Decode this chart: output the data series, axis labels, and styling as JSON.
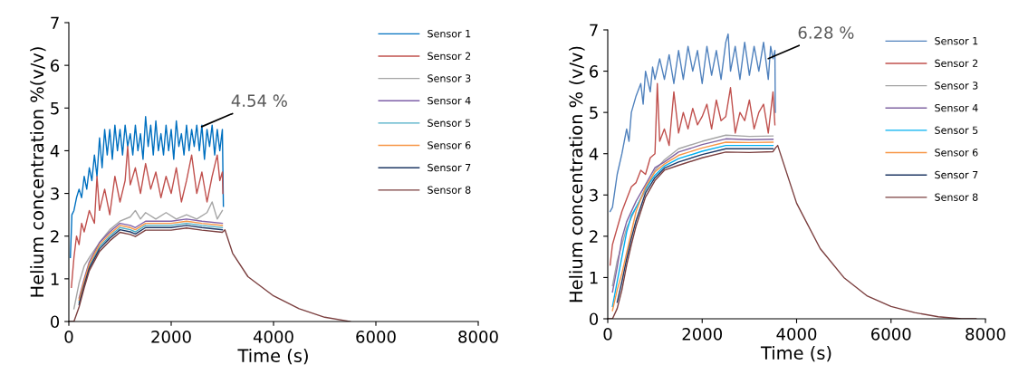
{
  "chart_data": [
    {
      "type": "line",
      "xlabel": "Time (s)",
      "ylabel": "Helium concentration %(v/v)",
      "xlim": [
        0,
        8000
      ],
      "ylim": [
        0,
        7
      ],
      "xticks": [
        0,
        2000,
        4000,
        6000,
        8000
      ],
      "yticks": [
        0,
        1,
        2,
        3,
        4,
        5,
        6,
        7
      ],
      "grid": false,
      "legend": "top right",
      "annotations": [
        {
          "text": "4.54 %",
          "x": 2550,
          "y": 4.54
        }
      ],
      "series": [
        {
          "name": "Sensor 1",
          "color": "#0070c0",
          "x": [
            30,
            60,
            100,
            150,
            200,
            250,
            300,
            350,
            400,
            450,
            500,
            550,
            600,
            650,
            700,
            750,
            800,
            850,
            900,
            950,
            1000,
            1050,
            1100,
            1150,
            1200,
            1250,
            1300,
            1350,
            1400,
            1450,
            1500,
            1550,
            1600,
            1650,
            1700,
            1750,
            1800,
            1850,
            1900,
            1950,
            2000,
            2050,
            2100,
            2150,
            2200,
            2250,
            2300,
            2350,
            2400,
            2450,
            2500,
            2550,
            2600,
            2650,
            2700,
            2750,
            2800,
            2850,
            2900,
            2950,
            3000,
            3020
          ],
          "values": [
            1.5,
            2.5,
            2.6,
            2.9,
            3.1,
            2.9,
            3.4,
            3.1,
            3.6,
            3.3,
            3.9,
            3.4,
            4.3,
            3.6,
            4.5,
            3.9,
            4.5,
            3.8,
            4.6,
            4.0,
            4.5,
            3.9,
            4.6,
            4.1,
            4.4,
            3.9,
            4.6,
            4.0,
            4.4,
            3.8,
            4.8,
            4.1,
            4.6,
            3.9,
            4.7,
            4.0,
            4.4,
            3.9,
            4.6,
            4.0,
            4.5,
            3.8,
            4.7,
            4.1,
            4.4,
            3.9,
            4.6,
            4.0,
            4.5,
            4.1,
            4.6,
            4.0,
            4.6,
            3.8,
            4.5,
            4.1,
            4.6,
            3.9,
            4.5,
            4.0,
            4.5,
            2.7
          ]
        },
        {
          "name": "Sensor 2",
          "color": "#c0504d",
          "x": [
            50,
            100,
            150,
            200,
            250,
            300,
            400,
            500,
            550,
            600,
            700,
            800,
            900,
            1000,
            1100,
            1150,
            1200,
            1300,
            1400,
            1500,
            1600,
            1700,
            1800,
            1900,
            2000,
            2100,
            2200,
            2300,
            2400,
            2500,
            2600,
            2700,
            2800,
            2900,
            2950,
            3000,
            3010
          ],
          "values": [
            0.8,
            1.5,
            2.0,
            1.8,
            2.3,
            2.1,
            2.6,
            2.3,
            3.4,
            2.6,
            3.1,
            2.5,
            3.4,
            2.8,
            3.3,
            4.1,
            3.2,
            3.6,
            3.0,
            3.7,
            3.1,
            3.5,
            2.9,
            3.4,
            3.0,
            3.6,
            2.8,
            3.3,
            3.9,
            3.0,
            3.5,
            2.8,
            3.4,
            3.9,
            3.3,
            3.5,
            3.0
          ]
        },
        {
          "name": "Sensor 3",
          "color": "#a5a5a5",
          "x": [
            100,
            200,
            300,
            400,
            600,
            800,
            1000,
            1200,
            1300,
            1400,
            1500,
            1700,
            1900,
            2100,
            2300,
            2500,
            2700,
            2800,
            2900,
            3000
          ],
          "values": [
            0.3,
            0.9,
            1.3,
            1.5,
            1.85,
            2.15,
            2.35,
            2.45,
            2.6,
            2.4,
            2.55,
            2.4,
            2.55,
            2.4,
            2.5,
            2.4,
            2.55,
            2.8,
            2.4,
            2.6
          ]
        },
        {
          "name": "Sensor 4",
          "color": "#7f5fa8",
          "x": [
            200,
            300,
            400,
            600,
            800,
            1000,
            1200,
            1300,
            1500,
            2000,
            2300,
            2600,
            3000
          ],
          "values": [
            0.55,
            1.0,
            1.4,
            1.85,
            2.1,
            2.3,
            2.25,
            2.2,
            2.35,
            2.35,
            2.4,
            2.35,
            2.3
          ]
        },
        {
          "name": "Sensor 5",
          "color": "#4bacc6",
          "x": [
            200,
            300,
            400,
            600,
            800,
            1000,
            1200,
            1300,
            1500,
            2000,
            2300,
            2600,
            3000
          ],
          "values": [
            0.45,
            0.9,
            1.3,
            1.75,
            2.0,
            2.2,
            2.15,
            2.1,
            2.25,
            2.25,
            2.3,
            2.25,
            2.2
          ]
        },
        {
          "name": "Sensor 6",
          "color": "#f79646",
          "x": [
            200,
            300,
            400,
            600,
            800,
            1000,
            1200,
            1300,
            1500,
            2000,
            2300,
            2600,
            3000
          ],
          "values": [
            0.5,
            0.95,
            1.35,
            1.8,
            2.05,
            2.25,
            2.2,
            2.15,
            2.3,
            2.3,
            2.35,
            2.3,
            2.25
          ]
        },
        {
          "name": "Sensor 7",
          "color": "#1f3864",
          "x": [
            200,
            300,
            400,
            600,
            800,
            1000,
            1200,
            1300,
            1500,
            2000,
            2300,
            2600,
            3000
          ],
          "values": [
            0.4,
            0.85,
            1.25,
            1.7,
            1.95,
            2.15,
            2.1,
            2.05,
            2.2,
            2.2,
            2.25,
            2.2,
            2.15
          ]
        },
        {
          "name": "Sensor 8",
          "color": "#7b3f3f",
          "x": [
            0,
            100,
            200,
            300,
            400,
            600,
            800,
            1000,
            1200,
            1300,
            1500,
            2000,
            2300,
            2600,
            3000,
            3050,
            3200,
            3500,
            4000,
            4500,
            5000,
            5500
          ],
          "values": [
            0,
            0,
            0.34,
            0.79,
            1.19,
            1.64,
            1.89,
            2.09,
            2.04,
            1.99,
            2.14,
            2.14,
            2.19,
            2.14,
            2.09,
            2.15,
            1.6,
            1.05,
            0.6,
            0.3,
            0.1,
            0
          ]
        }
      ]
    },
    {
      "type": "line",
      "xlabel": "Time (s)",
      "ylabel": "Helium concentration % (v/v)",
      "xlim": [
        0,
        8000
      ],
      "ylim": [
        0,
        7
      ],
      "xticks": [
        0,
        2000,
        4000,
        6000,
        8000
      ],
      "yticks": [
        0,
        1,
        2,
        3,
        4,
        5,
        6,
        7
      ],
      "grid": false,
      "legend": "top right",
      "annotations": [
        {
          "text": "6.28 %",
          "x": 3350,
          "y": 6.28
        }
      ],
      "series": [
        {
          "name": "Sensor 1",
          "color": "#4f81bd",
          "x": [
            50,
            100,
            200,
            300,
            400,
            450,
            500,
            600,
            700,
            750,
            800,
            900,
            950,
            1000,
            1100,
            1200,
            1300,
            1400,
            1500,
            1600,
            1700,
            1800,
            1900,
            2000,
            2100,
            2200,
            2300,
            2400,
            2500,
            2550,
            2600,
            2700,
            2800,
            2900,
            3000,
            3100,
            3200,
            3300,
            3400,
            3450,
            3500,
            3540,
            3550
          ],
          "values": [
            2.6,
            2.7,
            3.5,
            4.0,
            4.6,
            4.3,
            5.0,
            5.4,
            5.7,
            5.2,
            6.0,
            5.5,
            6.1,
            5.8,
            6.3,
            5.8,
            6.4,
            5.7,
            6.5,
            5.8,
            6.6,
            6.0,
            6.5,
            5.7,
            6.6,
            5.9,
            6.5,
            5.8,
            6.7,
            6.9,
            6.0,
            6.6,
            5.8,
            6.7,
            5.9,
            6.6,
            6.0,
            6.7,
            5.8,
            6.6,
            6.3,
            6.5,
            5.0
          ]
        },
        {
          "name": "Sensor 2",
          "color": "#c0504d",
          "x": [
            50,
            100,
            200,
            300,
            400,
            500,
            600,
            700,
            800,
            900,
            1000,
            1050,
            1100,
            1200,
            1300,
            1400,
            1500,
            1600,
            1700,
            1800,
            1900,
            2000,
            2100,
            2200,
            2300,
            2400,
            2500,
            2600,
            2700,
            2800,
            2900,
            3000,
            3100,
            3200,
            3300,
            3400,
            3500,
            3540
          ],
          "values": [
            1.3,
            1.8,
            2.2,
            2.6,
            2.9,
            3.2,
            3.3,
            3.6,
            3.5,
            3.9,
            4.0,
            5.7,
            4.3,
            4.6,
            4.2,
            5.5,
            4.5,
            5.0,
            4.6,
            5.1,
            4.7,
            4.9,
            5.2,
            4.6,
            5.3,
            4.8,
            4.9,
            5.6,
            4.5,
            5.0,
            4.8,
            5.3,
            4.6,
            5.0,
            5.2,
            4.5,
            5.5,
            4.7
          ]
        },
        {
          "name": "Sensor 3",
          "color": "#a5a5a5",
          "x": [
            100,
            200,
            300,
            400,
            600,
            800,
            1000,
            1200,
            1500,
            2000,
            2500,
            3000,
            3500
          ],
          "values": [
            0.8,
            1.4,
            1.8,
            2.2,
            2.7,
            3.1,
            3.6,
            3.85,
            4.12,
            4.3,
            4.45,
            4.42,
            4.43
          ]
        },
        {
          "name": "Sensor 4",
          "color": "#8064a2",
          "x": [
            100,
            200,
            300,
            400,
            600,
            800,
            1000,
            1200,
            1500,
            2000,
            2500,
            3000,
            3500
          ],
          "values": [
            0.65,
            1.25,
            1.95,
            2.35,
            2.85,
            3.25,
            3.66,
            3.8,
            4.04,
            4.22,
            4.36,
            4.34,
            4.35
          ]
        },
        {
          "name": "Sensor 5",
          "color": "#00b0f0",
          "x": [
            100,
            200,
            300,
            400,
            500,
            600,
            800,
            1000,
            1200,
            1500,
            2000,
            2500,
            3000,
            3500
          ],
          "values": [
            0.3,
            0.9,
            1.5,
            2.1,
            2.5,
            2.7,
            3.15,
            3.48,
            3.7,
            3.88,
            4.06,
            4.2,
            4.2,
            4.2
          ]
        },
        {
          "name": "Sensor 6",
          "color": "#f79646",
          "x": [
            100,
            200,
            300,
            400,
            500,
            600,
            800,
            1000,
            1200,
            1500,
            2000,
            2500,
            3000,
            3500
          ],
          "values": [
            0.2,
            0.7,
            1.1,
            1.6,
            2.1,
            2.6,
            3.2,
            3.56,
            3.75,
            3.96,
            4.14,
            4.28,
            4.27,
            4.28
          ]
        },
        {
          "name": "Sensor 7",
          "color": "#1f3864",
          "x": [
            200,
            300,
            400,
            500,
            600,
            800,
            1000,
            1200,
            1500,
            2000,
            2500,
            3000,
            3500
          ],
          "values": [
            0.4,
            0.9,
            1.45,
            1.95,
            2.38,
            3.05,
            3.42,
            3.65,
            3.8,
            3.98,
            4.12,
            4.12,
            4.12
          ]
        },
        {
          "name": "Sensor 8",
          "color": "#7b3f3f",
          "x": [
            0,
            100,
            200,
            300,
            400,
            500,
            600,
            800,
            1000,
            1200,
            1500,
            2000,
            2500,
            3000,
            3500,
            3560,
            3600,
            4000,
            4500,
            5000,
            5500,
            6000,
            6500,
            7000,
            7500,
            7800
          ],
          "values": [
            0,
            0,
            0.25,
            0.7,
            1.3,
            1.8,
            2.25,
            2.95,
            3.35,
            3.6,
            3.72,
            3.9,
            4.04,
            4.03,
            4.05,
            4.15,
            4.2,
            2.8,
            1.7,
            1.0,
            0.55,
            0.3,
            0.15,
            0.05,
            0,
            0
          ]
        }
      ]
    }
  ]
}
